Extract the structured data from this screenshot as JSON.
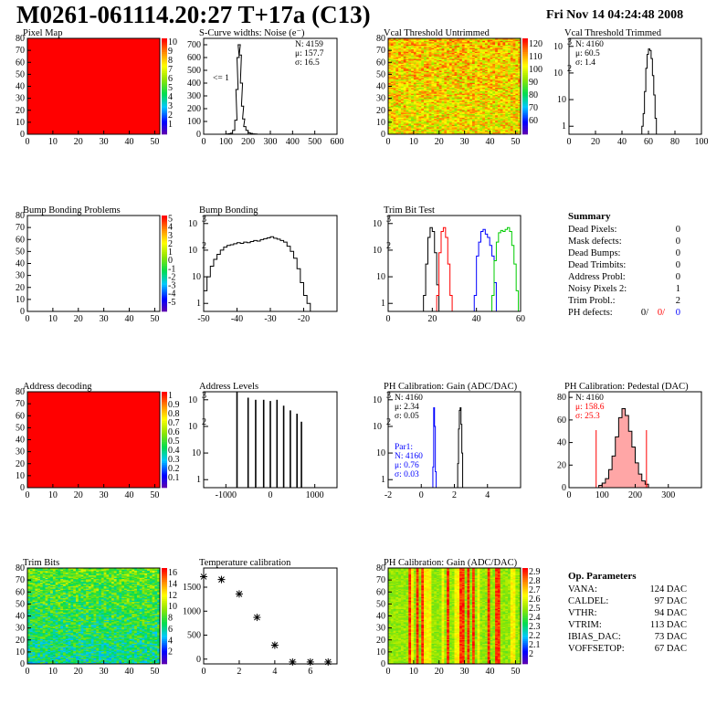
{
  "header": {
    "title": "M0261-061114.20:27 T+17a (C13)",
    "date": "Fri Nov 14 04:24:48 2008"
  },
  "colors": {
    "red": "#ff0000",
    "blue": "#0000ff",
    "green": "#00cc00",
    "black": "#000000"
  },
  "chart_data": [
    {
      "id": "pixel-map",
      "type": "heatmap",
      "title": "Pixel Map",
      "xlim": [
        0,
        52
      ],
      "ylim": [
        0,
        80
      ],
      "xticks": [
        0,
        10,
        20,
        30,
        40,
        50
      ],
      "yticks": [
        0,
        10,
        20,
        30,
        40,
        50,
        60,
        70,
        80
      ],
      "fill": "uniform-max",
      "palette_ticks": [
        "1",
        "2",
        "3",
        "4",
        "5",
        "6",
        "7",
        "8",
        "9",
        "10"
      ]
    },
    {
      "id": "scurve-widths",
      "type": "histogram",
      "title": "S-Curve widths: Noise (e⁻)",
      "xlim": [
        0,
        600
      ],
      "ylim": [
        0,
        750
      ],
      "xticks": [
        0,
        100,
        200,
        300,
        400,
        500,
        600
      ],
      "yticks": [
        0,
        100,
        200,
        300,
        400,
        500,
        600,
        700
      ],
      "stats": [
        "N: 4159",
        "μ: 157.7",
        "σ: 16.5"
      ],
      "annotation": "<= 1",
      "bins": [
        [
          100,
          2
        ],
        [
          110,
          4
        ],
        [
          120,
          8
        ],
        [
          130,
          30
        ],
        [
          140,
          110
        ],
        [
          145,
          350
        ],
        [
          150,
          600
        ],
        [
          155,
          700
        ],
        [
          160,
          620
        ],
        [
          165,
          400
        ],
        [
          170,
          220
        ],
        [
          175,
          120
        ],
        [
          180,
          60
        ],
        [
          190,
          30
        ],
        [
          200,
          12
        ],
        [
          210,
          6
        ],
        [
          220,
          3
        ],
        [
          230,
          2
        ]
      ]
    },
    {
      "id": "vcal-untrimmed",
      "type": "heatmap",
      "title": "Vcal Threshold Untrimmed",
      "xlim": [
        0,
        52
      ],
      "ylim": [
        0,
        80
      ],
      "xticks": [
        0,
        10,
        20,
        30,
        40,
        50
      ],
      "yticks": [
        0,
        10,
        20,
        30,
        40,
        50,
        60,
        70,
        80
      ],
      "fill": "noise-orange",
      "palette_ticks": [
        "60",
        "70",
        "80",
        "90",
        "100",
        "110",
        "120"
      ]
    },
    {
      "id": "vcal-trimmed",
      "type": "histogram",
      "scale": "log",
      "title": "Vcal Threshold Trimmed",
      "xlim": [
        0,
        100
      ],
      "ylim": [
        0.5,
        2000
      ],
      "xticks": [
        0,
        20,
        40,
        60,
        80,
        100
      ],
      "stats": [
        "N: 4160",
        "μ: 60.5",
        "σ: 1.4"
      ],
      "bins": [
        [
          55,
          1
        ],
        [
          56,
          3
        ],
        [
          57,
          20
        ],
        [
          58,
          150
        ],
        [
          59,
          500
        ],
        [
          60,
          800
        ],
        [
          61,
          700
        ],
        [
          62,
          350
        ],
        [
          63,
          80
        ],
        [
          64,
          15
        ],
        [
          65,
          2
        ]
      ]
    },
    {
      "id": "bump-bonding-problems",
      "type": "heatmap",
      "title": "Bump Bonding Problems",
      "xlim": [
        0,
        52
      ],
      "ylim": [
        0,
        80
      ],
      "xticks": [
        0,
        10,
        20,
        30,
        40,
        50
      ],
      "yticks": [
        0,
        10,
        20,
        30,
        40,
        50,
        60,
        70,
        80
      ],
      "fill": "empty",
      "palette_ticks": [
        "-5",
        "-4",
        "-3",
        "-2",
        "-1",
        "0",
        "1",
        "2",
        "3",
        "4",
        "5"
      ]
    },
    {
      "id": "bump-bonding",
      "type": "histogram",
      "scale": "log",
      "title": "Bump Bonding",
      "xlim": [
        -50,
        -10
      ],
      "ylim": [
        0.5,
        2000
      ],
      "xticks": [
        -50,
        -40,
        -30,
        -20
      ],
      "bins": [
        [
          -50,
          3
        ],
        [
          -49,
          10
        ],
        [
          -48,
          25
        ],
        [
          -47,
          45
        ],
        [
          -46,
          70
        ],
        [
          -45,
          100
        ],
        [
          -44,
          130
        ],
        [
          -43,
          150
        ],
        [
          -42,
          160
        ],
        [
          -41,
          175
        ],
        [
          -40,
          190
        ],
        [
          -39,
          180
        ],
        [
          -38,
          200
        ],
        [
          -37,
          190
        ],
        [
          -36,
          210
        ],
        [
          -35,
          230
        ],
        [
          -34,
          220
        ],
        [
          -33,
          250
        ],
        [
          -32,
          270
        ],
        [
          -31,
          290
        ],
        [
          -30,
          320
        ],
        [
          -29,
          280
        ],
        [
          -28,
          260
        ],
        [
          -27,
          230
        ],
        [
          -26,
          200
        ],
        [
          -25,
          140
        ],
        [
          -24,
          90
        ],
        [
          -23,
          50
        ],
        [
          -22,
          20
        ],
        [
          -21,
          6
        ],
        [
          -20,
          2
        ],
        [
          -19,
          1
        ]
      ]
    },
    {
      "id": "trim-bit-test",
      "type": "histogram",
      "scale": "log",
      "title": "Trim Bit Test",
      "xlim": [
        0,
        60
      ],
      "ylim": [
        0.5,
        2000
      ],
      "xticks": [
        0,
        20,
        40,
        60
      ],
      "series": [
        {
          "color": "black",
          "bins": [
            [
              16,
              2
            ],
            [
              17,
              30
            ],
            [
              18,
              300
            ],
            [
              19,
              700
            ],
            [
              20,
              500
            ],
            [
              21,
              80
            ],
            [
              22,
              5
            ]
          ]
        },
        {
          "color": "red",
          "bins": [
            [
              22,
              2
            ],
            [
              23,
              80
            ],
            [
              24,
              500
            ],
            [
              25,
              700
            ],
            [
              26,
              300
            ],
            [
              27,
              30
            ],
            [
              28,
              2
            ]
          ]
        },
        {
          "color": "blue",
          "bins": [
            [
              39,
              2
            ],
            [
              40,
              60
            ],
            [
              41,
              200
            ],
            [
              42,
              500
            ],
            [
              43,
              600
            ],
            [
              44,
              400
            ],
            [
              45,
              300
            ],
            [
              46,
              150
            ],
            [
              47,
              60
            ],
            [
              48,
              6
            ]
          ]
        },
        {
          "color": "green",
          "bins": [
            [
              47,
              2
            ],
            [
              48,
              40
            ],
            [
              49,
              200
            ],
            [
              50,
              450
            ],
            [
              51,
              550
            ],
            [
              52,
              500
            ],
            [
              53,
              600
            ],
            [
              54,
              700
            ],
            [
              55,
              500
            ],
            [
              56,
              150
            ],
            [
              57,
              30
            ],
            [
              58,
              3
            ]
          ]
        }
      ]
    },
    {
      "id": "address-decoding",
      "type": "heatmap",
      "title": "Address decoding",
      "xlim": [
        0,
        52
      ],
      "ylim": [
        0,
        80
      ],
      "xticks": [
        0,
        10,
        20,
        30,
        40,
        50
      ],
      "yticks": [
        0,
        10,
        20,
        30,
        40,
        50,
        60,
        70,
        80
      ],
      "fill": "uniform-max",
      "palette_ticks": [
        "0.1",
        "0.2",
        "0.3",
        "0.4",
        "0.5",
        "0.6",
        "0.7",
        "0.8",
        "0.9",
        "1"
      ]
    },
    {
      "id": "address-levels",
      "type": "histogram",
      "scale": "log",
      "title": "Address Levels",
      "xlim": [
        -1500,
        1500
      ],
      "ylim": [
        0.5,
        2000
      ],
      "xticks": [
        -1000,
        0,
        1000
      ],
      "bins": [
        [
          -750,
          2000
        ],
        [
          -500,
          1200
        ],
        [
          -330,
          1000
        ],
        [
          -150,
          1000
        ],
        [
          0,
          900
        ],
        [
          150,
          1000
        ],
        [
          300,
          600
        ],
        [
          450,
          400
        ],
        [
          600,
          300
        ],
        [
          700,
          150
        ]
      ]
    },
    {
      "id": "ph-gain",
      "type": "histogram",
      "scale": "log",
      "title": "PH Calibration: Gain (ADC/DAC)",
      "xlim": [
        -2,
        6
      ],
      "ylim": [
        0.5,
        2000
      ],
      "xticks": [
        -2,
        0,
        2,
        4
      ],
      "stats": [
        "N: 4160",
        "μ: 2.34",
        "σ: 0.05"
      ],
      "stats2_title": "Par1:",
      "stats2": [
        "N: 4160",
        "μ: 0.76",
        "σ: 0.03"
      ],
      "series": [
        {
          "color": "blue",
          "bins": [
            [
              0.7,
              3
            ],
            [
              0.75,
              500
            ],
            [
              0.8,
              100
            ],
            [
              0.85,
              2
            ]
          ]
        },
        {
          "color": "black",
          "bins": [
            [
              2.2,
              4
            ],
            [
              2.25,
              80
            ],
            [
              2.3,
              400
            ],
            [
              2.35,
              500
            ],
            [
              2.4,
              120
            ],
            [
              2.45,
              10
            ]
          ]
        }
      ]
    },
    {
      "id": "ph-pedestal",
      "type": "histogram",
      "title": "PH Calibration: Pedestal (DAC)",
      "xlim": [
        0,
        400
      ],
      "ylim": [
        0,
        85
      ],
      "xticks": [
        0,
        100,
        200,
        300
      ],
      "yticks": [
        0,
        20,
        40,
        60,
        80
      ],
      "stats": [
        "N: 4160",
        "μ: 158.6",
        "σ: 25.3"
      ],
      "marker_lines": [
        82,
        234
      ],
      "bins": [
        [
          90,
          2
        ],
        [
          100,
          4
        ],
        [
          110,
          8
        ],
        [
          120,
          16
        ],
        [
          130,
          28
        ],
        [
          140,
          45
        ],
        [
          150,
          62
        ],
        [
          160,
          70
        ],
        [
          170,
          64
        ],
        [
          180,
          50
        ],
        [
          190,
          36
        ],
        [
          200,
          22
        ],
        [
          210,
          12
        ],
        [
          220,
          6
        ],
        [
          230,
          3
        ]
      ]
    },
    {
      "id": "trim-bits",
      "type": "heatmap",
      "title": "Trim Bits",
      "xlim": [
        0,
        52
      ],
      "ylim": [
        0,
        80
      ],
      "xticks": [
        0,
        10,
        20,
        30,
        40,
        50
      ],
      "yticks": [
        0,
        10,
        20,
        30,
        40,
        50,
        60,
        70,
        80
      ],
      "fill": "noise-green",
      "palette_ticks": [
        "2",
        "4",
        "6",
        "8",
        "10",
        "12",
        "14",
        "16"
      ]
    },
    {
      "id": "temperature-calibration",
      "type": "scatter",
      "title": "Temperature calibration",
      "xlim": [
        0,
        7.5
      ],
      "ylim": [
        -100,
        1900
      ],
      "xticks": [
        0,
        2,
        4,
        6
      ],
      "yticks": [
        0,
        500,
        1000,
        1500
      ],
      "points": [
        [
          0,
          1720
        ],
        [
          1,
          1660
        ],
        [
          2,
          1360
        ],
        [
          3,
          870
        ],
        [
          4,
          290
        ],
        [
          5,
          -60
        ],
        [
          6,
          -60
        ],
        [
          7,
          -60
        ]
      ]
    },
    {
      "id": "ph-gain-map",
      "type": "heatmap",
      "title": "PH Calibration: Gain (ADC/DAC)",
      "xlim": [
        0,
        52
      ],
      "ylim": [
        0,
        80
      ],
      "xticks": [
        0,
        10,
        20,
        30,
        40,
        50
      ],
      "yticks": [
        0,
        10,
        20,
        30,
        40,
        50,
        60,
        70,
        80
      ],
      "fill": "columns",
      "palette_ticks": [
        "2",
        "2.1",
        "2.2",
        "2.3",
        "2.4",
        "2.5",
        "2.6",
        "2.7",
        "2.8",
        "2.9"
      ]
    }
  ],
  "summary": {
    "title": "Summary",
    "rows": [
      {
        "label": "Dead Pixels:",
        "value": "0"
      },
      {
        "label": "Mask defects:",
        "value": "0"
      },
      {
        "label": "Dead Bumps:",
        "value": "0"
      },
      {
        "label": "Dead Trimbits:",
        "value": "0"
      },
      {
        "label": "Address Probl:",
        "value": "0"
      },
      {
        "label": "Noisy Pixels 2:",
        "value": "1"
      },
      {
        "label": "Trim Probl.:",
        "value": "2"
      }
    ],
    "ph_label": "PH defects:",
    "ph_values": [
      "0/",
      "0/",
      "0"
    ]
  },
  "op_params": {
    "title": "Op. Parameters",
    "rows": [
      {
        "label": "VANA:",
        "value": "124 DAC"
      },
      {
        "label": "CALDEL:",
        "value": "97 DAC"
      },
      {
        "label": "VTHR:",
        "value": "94 DAC"
      },
      {
        "label": "VTRIM:",
        "value": "113 DAC"
      },
      {
        "label": "IBIAS_DAC:",
        "value": "73 DAC"
      },
      {
        "label": "VOFFSETOP:",
        "value": "67 DAC"
      }
    ]
  }
}
